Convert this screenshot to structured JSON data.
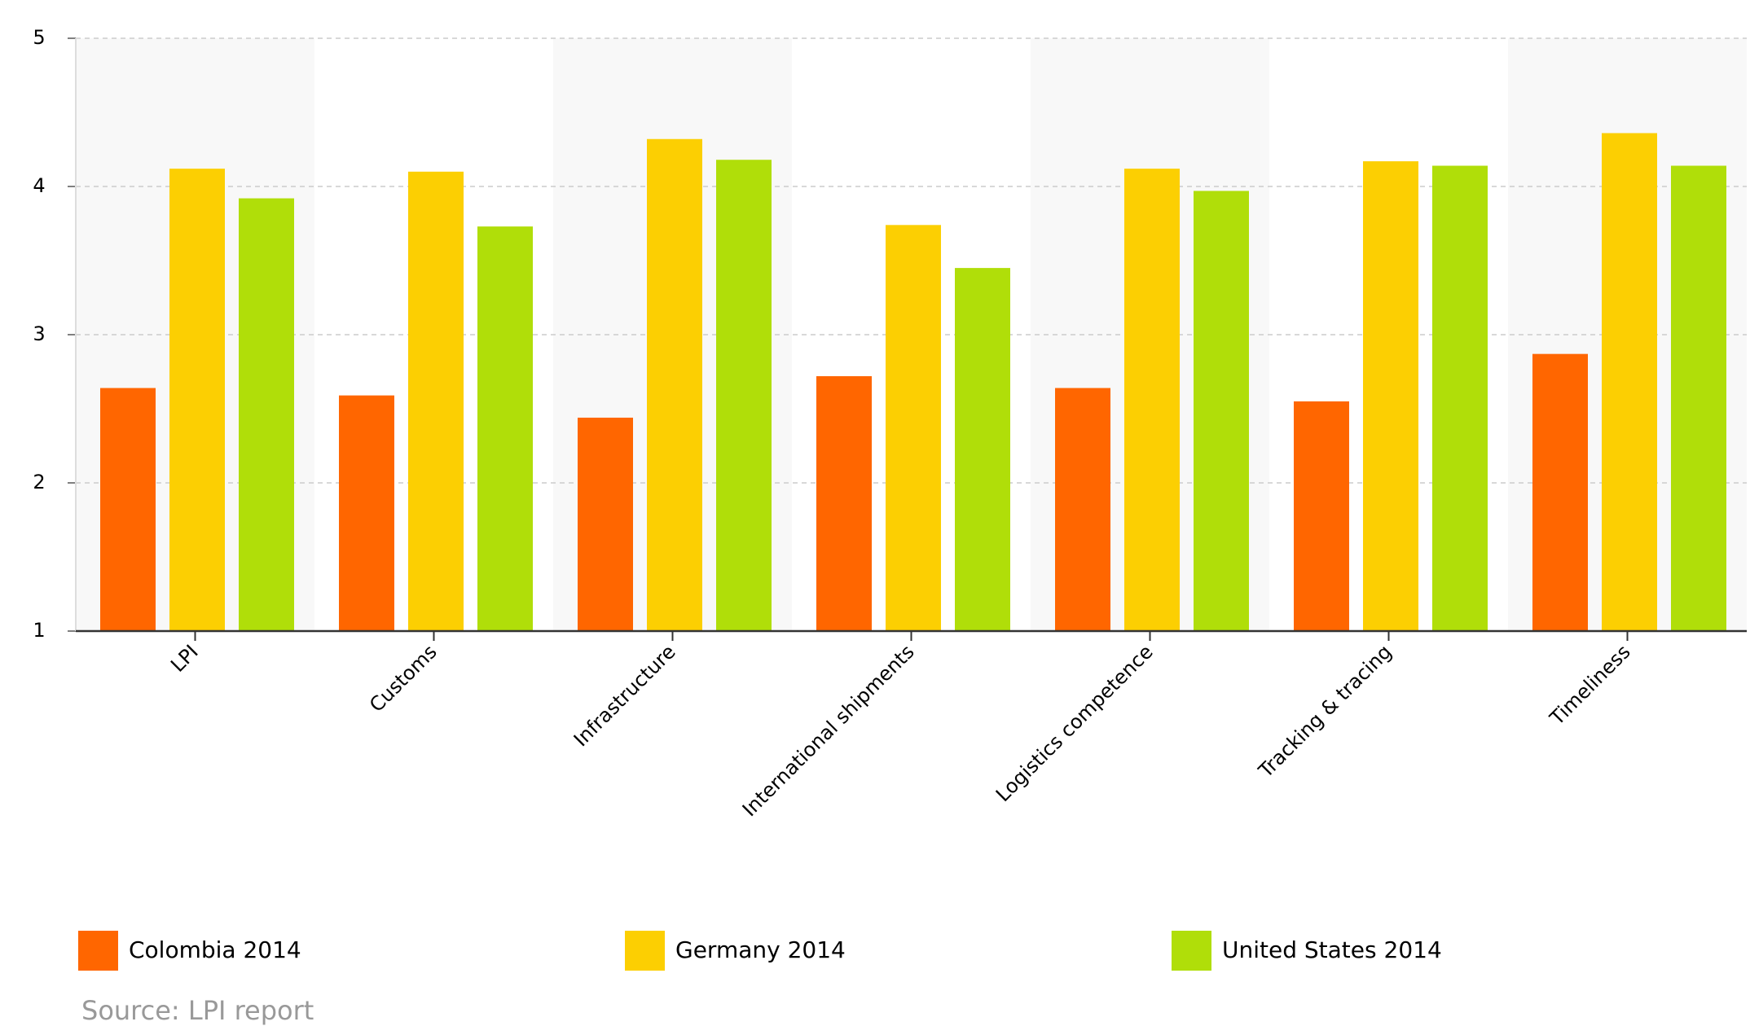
{
  "chart_data": {
    "type": "bar",
    "categories": [
      "LPI",
      "Customs",
      "Infrastructure",
      "International shipments",
      "Logistics competence",
      "Tracking & tracing",
      "Timeliness"
    ],
    "series": [
      {
        "name": "Colombia 2014",
        "color": "#ff6600",
        "values": [
          2.64,
          2.59,
          2.44,
          2.72,
          2.64,
          2.55,
          2.87
        ]
      },
      {
        "name": "Germany 2014",
        "color": "#fccf02",
        "values": [
          4.12,
          4.1,
          4.32,
          3.74,
          4.12,
          4.17,
          4.36
        ]
      },
      {
        "name": "United States 2014",
        "color": "#b0de09",
        "values": [
          3.92,
          3.73,
          4.18,
          3.45,
          3.97,
          4.14,
          4.14
        ]
      }
    ],
    "ylim": [
      1,
      5
    ],
    "yticks": [
      1,
      2,
      3,
      4,
      5
    ],
    "grid": true,
    "source": "Source: LPI report"
  }
}
